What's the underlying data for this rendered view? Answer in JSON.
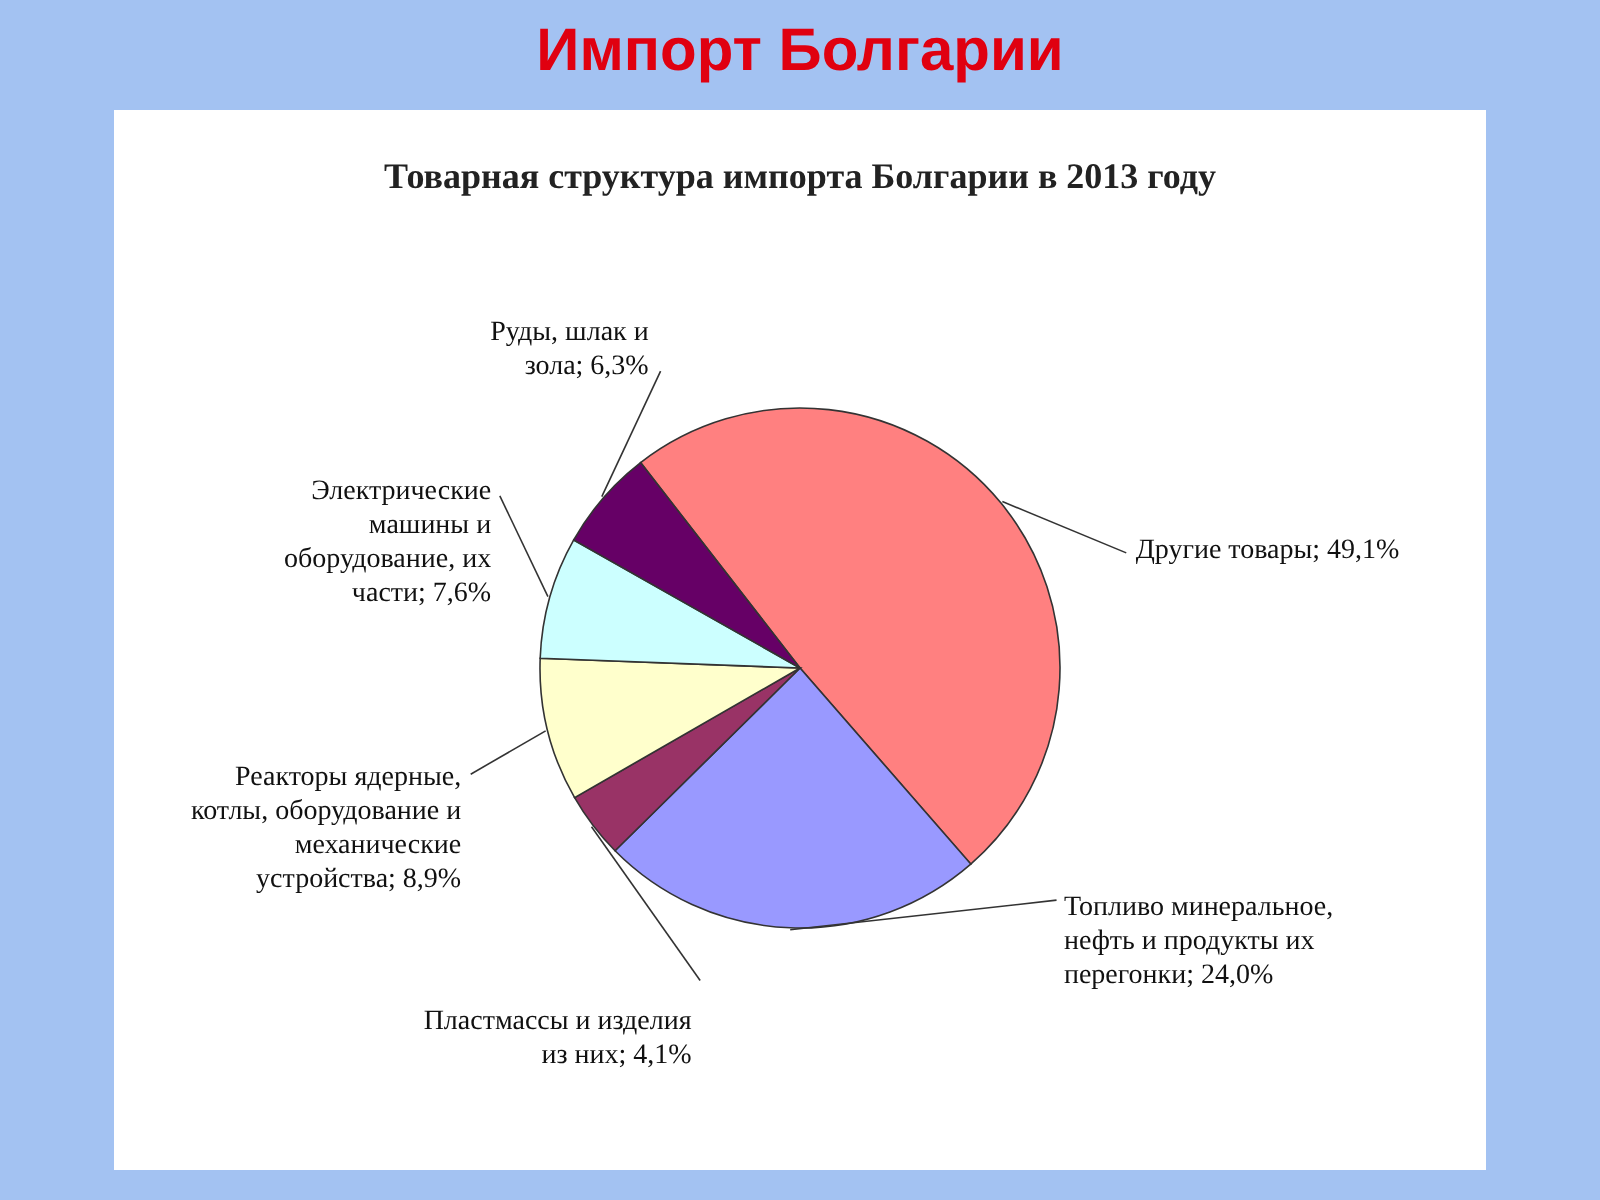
{
  "chart_data": {
    "type": "pie",
    "title": "Импорт Болгарии",
    "subtitle": "Товарная структура импорта Болгарии в 2013 году",
    "categories": [
      "Другие товары",
      "Топливо минеральное, нефть и продукты их перегонки",
      "Пластмассы и изделия из них",
      "Реакторы ядерные, котлы, оборудование и механические устройства",
      "Электрические машины и оборудование, их части",
      "Руды, шлак и зола"
    ],
    "values": [
      49.1,
      24.0,
      4.1,
      8.9,
      7.6,
      6.3
    ],
    "value_labels": [
      "49,1%",
      "24,0%",
      "4,1%",
      "8,9%",
      "7,6%",
      "6,3%"
    ],
    "colors": [
      "#ff8080",
      "#9999ff",
      "#993366",
      "#ffffcc",
      "#ccffff",
      "#660066"
    ]
  }
}
